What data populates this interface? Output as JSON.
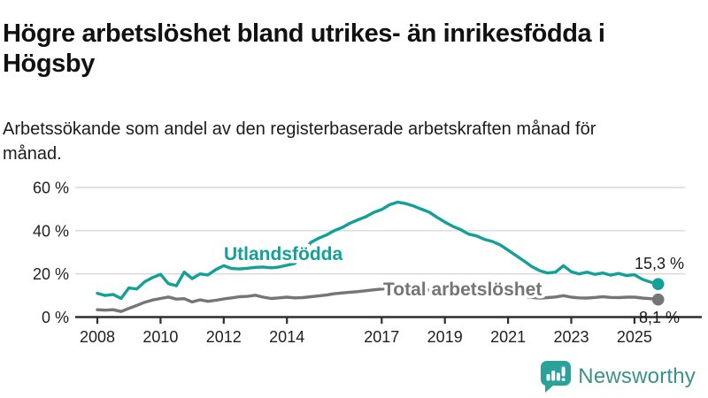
{
  "header": {
    "title": "Högre arbetslöshet bland utrikes- än inrikesfödda i Högsby",
    "subtitle": "Arbetssökande som andel av den registerbaserade arbetskraften månad för månad."
  },
  "chart": {
    "y_tick_labels": [
      "60 %",
      "40 %",
      "20 %",
      "0 %"
    ],
    "x_tick_labels": [
      "2008",
      "2010",
      "2012",
      "2014",
      "2017",
      "2019",
      "2021",
      "2023",
      "2025"
    ],
    "series_label_utlandsfodda": "Utlandsfödda",
    "series_label_total": "Total arbetslöshet",
    "end_label_utlandsfodda": "15,3 %",
    "end_label_total": "8,1 %"
  },
  "chart_data": {
    "type": "line",
    "title": "Högre arbetslöshet bland utrikes- än inrikesfödda i Högsby",
    "subtitle": "Arbetssökande som andel av den registerbaserade arbetskraften månad för månad.",
    "unit": "%",
    "x_start": 2008.0,
    "x_step_years": 0.25,
    "xlim": [
      2008,
      2025.83
    ],
    "ylim": [
      0,
      60
    ],
    "y_ticks": [
      0,
      20,
      40,
      60
    ],
    "x_ticks": [
      2008,
      2010,
      2012,
      2014,
      2017,
      2019,
      2021,
      2023,
      2025
    ],
    "grid": true,
    "legend_position": "inline-labels",
    "series": [
      {
        "name": "Utlandsfödda",
        "color": "#13a099",
        "final_value": 15.3,
        "final_label": "15,3 %",
        "values": [
          11.0,
          10.0,
          10.5,
          8.6,
          13.5,
          13.0,
          16.4,
          18.3,
          19.8,
          15.5,
          14.5,
          20.8,
          17.8,
          20.0,
          19.5,
          22.0,
          23.8,
          22.5,
          22.3,
          22.6,
          23.0,
          23.2,
          22.8,
          23.2,
          24.0,
          24.8,
          29.0,
          34.5,
          36.5,
          38.0,
          40.0,
          41.5,
          43.5,
          45.0,
          46.5,
          48.5,
          49.8,
          52.0,
          53.2,
          52.6,
          51.5,
          50.0,
          48.6,
          46.2,
          44.0,
          42.0,
          40.5,
          38.4,
          37.6,
          36.0,
          35.0,
          33.4,
          31.0,
          28.5,
          26.0,
          23.4,
          21.5,
          20.4,
          20.8,
          23.8,
          21.0,
          20.0,
          20.8,
          19.8,
          20.4,
          19.4,
          20.2,
          19.2,
          19.6,
          17.5,
          16.2,
          15.3
        ]
      },
      {
        "name": "Total arbetslöshet",
        "color": "#757575",
        "final_value": 8.1,
        "final_label": "8,1 %",
        "values": [
          3.4,
          3.2,
          3.4,
          2.6,
          4.0,
          5.4,
          6.9,
          7.9,
          8.6,
          9.3,
          8.3,
          8.5,
          7.0,
          8.0,
          7.3,
          7.8,
          8.4,
          8.9,
          9.4,
          9.6,
          10.1,
          9.2,
          8.6,
          8.9,
          9.2,
          8.9,
          9.0,
          9.4,
          9.8,
          10.2,
          10.8,
          11.2,
          11.5,
          11.8,
          12.2,
          12.6,
          13.0,
          13.3,
          13.5,
          13.4,
          13.2,
          12.9,
          12.5,
          12.1,
          11.8,
          11.4,
          11.0,
          10.7,
          10.5,
          10.9,
          10.7,
          10.4,
          10.1,
          9.8,
          9.4,
          9.1,
          8.8,
          9.0,
          9.3,
          9.9,
          9.2,
          8.9,
          8.8,
          9.1,
          9.4,
          9.1,
          9.0,
          9.2,
          9.2,
          8.8,
          8.5,
          8.1
        ]
      }
    ]
  },
  "colors": {
    "accent_teal": "#13a099",
    "series_gray": "#757575",
    "axis": "#2e2e2e",
    "gridline": "#d8d8d8",
    "text": "#111111",
    "brand_teal": "#3d918c",
    "icon_teal": "#2aa29a"
  },
  "branding": {
    "logo_text": "Newsworthy"
  }
}
